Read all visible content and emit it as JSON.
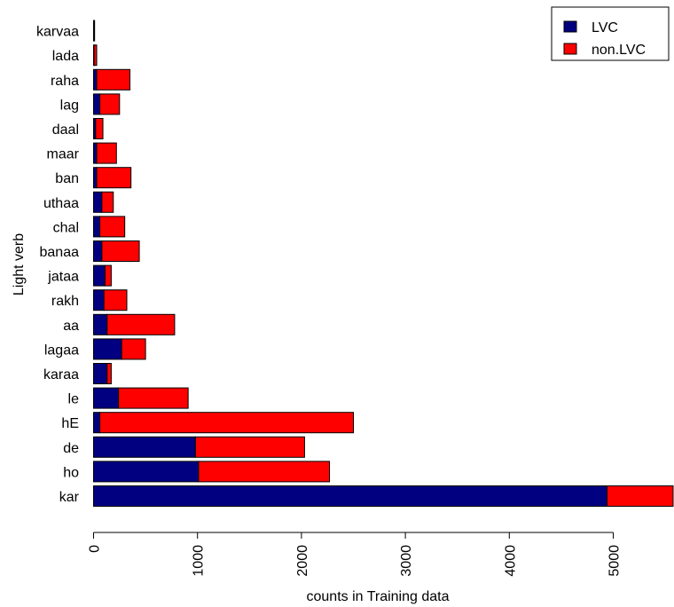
{
  "chart_data": {
    "type": "bar",
    "orientation": "horizontal",
    "stacked": true,
    "title": "",
    "xlabel": "counts in Training data",
    "ylabel": "Light verb",
    "categories": [
      "kar",
      "ho",
      "de",
      "hE",
      "le",
      "karaa",
      "lagaa",
      "aa",
      "rakh",
      "jataa",
      "banaa",
      "chal",
      "uthaa",
      "ban",
      "maar",
      "daal",
      "lag",
      "raha",
      "lada",
      "karvaa"
    ],
    "series": [
      {
        "name": "LVC",
        "color": "#000080",
        "values": [
          4940,
          1010,
          980,
          60,
          240,
          130,
          270,
          130,
          100,
          110,
          80,
          60,
          80,
          30,
          30,
          20,
          60,
          30,
          5,
          3
        ]
      },
      {
        "name": "non.LVC",
        "color": "#ff0000",
        "values": [
          660,
          1260,
          1050,
          2440,
          670,
          40,
          230,
          650,
          220,
          60,
          360,
          240,
          110,
          330,
          190,
          70,
          190,
          320,
          25,
          7
        ]
      }
    ],
    "xlim": [
      0,
      5600
    ],
    "xticks": [
      "0",
      "1000",
      "2000",
      "3000",
      "4000",
      "5000"
    ],
    "xtick_values": [
      0,
      1000,
      2000,
      3000,
      4000,
      5000
    ],
    "grid": false,
    "legend_position": "top-right"
  }
}
